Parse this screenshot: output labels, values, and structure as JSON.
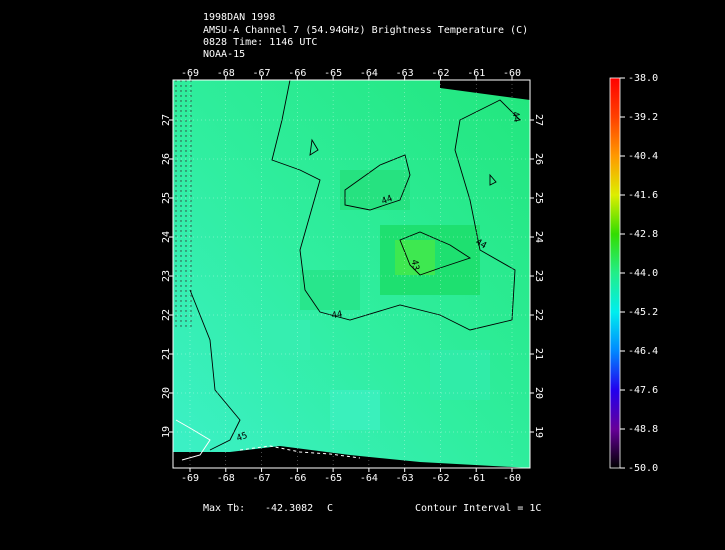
{
  "header": {
    "lines": [
      "1998DAN 1998",
      "AMSU-A Channel 7 (54.94GHz) Brightness Temperature (C)",
      "0828 Time: 1146 UTC",
      "NOAA-15"
    ]
  },
  "map": {
    "xticks": [
      -69,
      -68,
      -67,
      -66,
      -65,
      -64,
      -63,
      -62,
      -61,
      -60
    ],
    "yticks": [
      19,
      20,
      21,
      22,
      23,
      24,
      25,
      26,
      27
    ],
    "contour_labels": [
      "44",
      "44",
      "44",
      "43",
      "44",
      "45"
    ]
  },
  "colorbar": {
    "ticks": [
      {
        "value": -38,
        "label": "-38.0"
      },
      {
        "value": -39.2,
        "label": "-39.2"
      },
      {
        "value": -40.4,
        "label": "-40.4"
      },
      {
        "value": -41.6,
        "label": "-41.6"
      },
      {
        "value": -42.8,
        "label": "-42.8"
      },
      {
        "value": -44,
        "label": "-44.0"
      },
      {
        "value": -45.2,
        "label": "-45.2"
      },
      {
        "value": -46.4,
        "label": "-46.4"
      },
      {
        "value": -47.6,
        "label": "-47.6"
      },
      {
        "value": -48.8,
        "label": "-48.8"
      },
      {
        "value": -50,
        "label": "-50.0"
      }
    ]
  },
  "footer": {
    "max_label": "Max Tb:",
    "max_value": -42.3082,
    "max_unit": "C",
    "contour_interval": "Contour Interval = 1C"
  }
}
